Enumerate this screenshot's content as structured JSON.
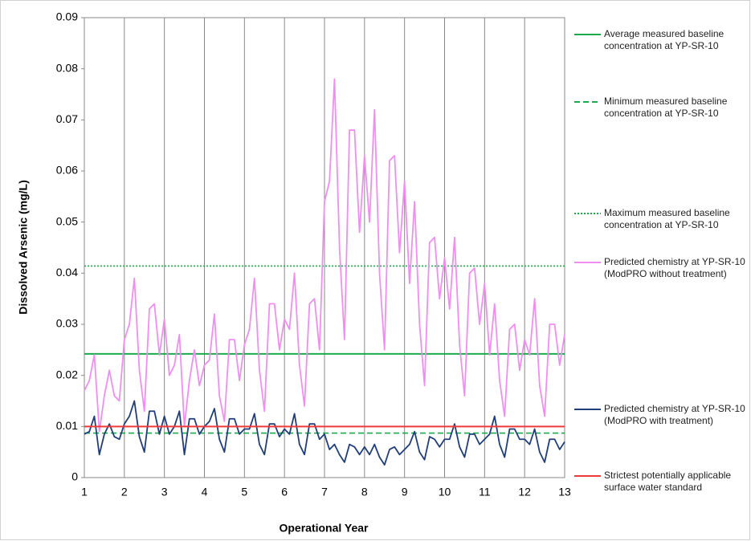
{
  "chart_data": {
    "type": "line",
    "xlabel": "Operational Year",
    "ylabel": "Dissolved Arsenic (mg/L)",
    "xlim": [
      1,
      13
    ],
    "xticks": [
      1,
      2,
      3,
      4,
      5,
      6,
      7,
      8,
      9,
      10,
      11,
      12,
      13
    ],
    "ylim": [
      0,
      0.09
    ],
    "yticks": [
      0,
      0.01,
      0.02,
      0.03,
      0.04,
      0.05,
      0.06,
      0.07,
      0.08,
      0.09
    ],
    "grid": "x",
    "legend": "right",
    "x": [
      1,
      1.125,
      1.25,
      1.375,
      1.5,
      1.625,
      1.75,
      1.875,
      2,
      2.125,
      2.25,
      2.375,
      2.5,
      2.625,
      2.75,
      2.875,
      3,
      3.125,
      3.25,
      3.375,
      3.5,
      3.625,
      3.75,
      3.875,
      4,
      4.125,
      4.25,
      4.375,
      4.5,
      4.625,
      4.75,
      4.875,
      5,
      5.125,
      5.25,
      5.375,
      5.5,
      5.625,
      5.75,
      5.875,
      6,
      6.125,
      6.25,
      6.375,
      6.5,
      6.625,
      6.75,
      6.875,
      7,
      7.125,
      7.25,
      7.375,
      7.5,
      7.625,
      7.75,
      7.875,
      8,
      8.125,
      8.25,
      8.375,
      8.5,
      8.625,
      8.75,
      8.875,
      9,
      9.125,
      9.25,
      9.375,
      9.5,
      9.625,
      9.75,
      9.875,
      10,
      10.125,
      10.25,
      10.375,
      10.5,
      10.625,
      10.75,
      10.875,
      11,
      11.125,
      11.25,
      11.375,
      11.5,
      11.625,
      11.75,
      11.875,
      12,
      12.125,
      12.25,
      12.375,
      12.5,
      12.625,
      12.75,
      12.875,
      13
    ],
    "series": [
      {
        "name": "Average measured baseline concentration at YP-SR-10",
        "color": "#1aab4a",
        "style": "solid",
        "value": 0.0242
      },
      {
        "name": "Minimum measured baseline concentration at YP-SR-10",
        "color": "#1aab4a",
        "style": "dashed",
        "value": 0.0087
      },
      {
        "name": "Maximum measured baseline concentration at YP-SR-10",
        "color": "#1aab4a",
        "style": "dotted",
        "value": 0.0414
      },
      {
        "name": "Predicted chemistry at YP-SR-10 (ModPRO without treatment)",
        "color": "#f08ef0",
        "style": "solid",
        "values": [
          0.017,
          0.019,
          0.024,
          0.009,
          0.016,
          0.021,
          0.016,
          0.015,
          0.027,
          0.03,
          0.039,
          0.021,
          0.013,
          0.033,
          0.034,
          0.024,
          0.031,
          0.02,
          0.022,
          0.028,
          0.01,
          0.019,
          0.025,
          0.018,
          0.022,
          0.023,
          0.032,
          0.016,
          0.011,
          0.027,
          0.027,
          0.019,
          0.026,
          0.029,
          0.039,
          0.021,
          0.013,
          0.034,
          0.034,
          0.025,
          0.031,
          0.029,
          0.04,
          0.022,
          0.014,
          0.034,
          0.035,
          0.025,
          0.054,
          0.058,
          0.078,
          0.045,
          0.027,
          0.068,
          0.068,
          0.048,
          0.063,
          0.05,
          0.072,
          0.04,
          0.025,
          0.062,
          0.063,
          0.044,
          0.058,
          0.038,
          0.054,
          0.03,
          0.018,
          0.046,
          0.047,
          0.035,
          0.043,
          0.033,
          0.047,
          0.026,
          0.016,
          0.04,
          0.041,
          0.03,
          0.038,
          0.024,
          0.034,
          0.019,
          0.012,
          0.029,
          0.03,
          0.021,
          0.027,
          0.024,
          0.035,
          0.018,
          0.012,
          0.03,
          0.03,
          0.022,
          0.028
        ]
      },
      {
        "name": "Predicted chemistry at YP-SR-10 (ModPRO with treatment)",
        "color": "#1f3e7a",
        "style": "solid",
        "values": [
          0.0085,
          0.009,
          0.012,
          0.0045,
          0.0085,
          0.0105,
          0.008,
          0.0075,
          0.0105,
          0.012,
          0.015,
          0.008,
          0.005,
          0.013,
          0.013,
          0.0085,
          0.012,
          0.0085,
          0.01,
          0.013,
          0.0045,
          0.0115,
          0.0115,
          0.0085,
          0.01,
          0.011,
          0.0135,
          0.0075,
          0.005,
          0.0115,
          0.0115,
          0.0085,
          0.0095,
          0.0095,
          0.0125,
          0.0065,
          0.0045,
          0.0105,
          0.0105,
          0.008,
          0.0095,
          0.0085,
          0.0125,
          0.0065,
          0.0045,
          0.0105,
          0.0105,
          0.0075,
          0.0085,
          0.0055,
          0.0065,
          0.0045,
          0.003,
          0.0065,
          0.006,
          0.0045,
          0.006,
          0.0045,
          0.0065,
          0.004,
          0.0025,
          0.0055,
          0.006,
          0.0045,
          0.0055,
          0.0065,
          0.009,
          0.005,
          0.0035,
          0.008,
          0.0075,
          0.006,
          0.0075,
          0.0075,
          0.0105,
          0.006,
          0.004,
          0.0085,
          0.0085,
          0.0065,
          0.0075,
          0.0085,
          0.012,
          0.0065,
          0.004,
          0.0095,
          0.0095,
          0.0075,
          0.0075,
          0.0065,
          0.0095,
          0.005,
          0.003,
          0.0075,
          0.0075,
          0.0055,
          0.007
        ]
      },
      {
        "name": "Strictest potentially applicable surface water standard",
        "color": "#f03a3a",
        "style": "solid",
        "value": 0.01
      }
    ]
  }
}
